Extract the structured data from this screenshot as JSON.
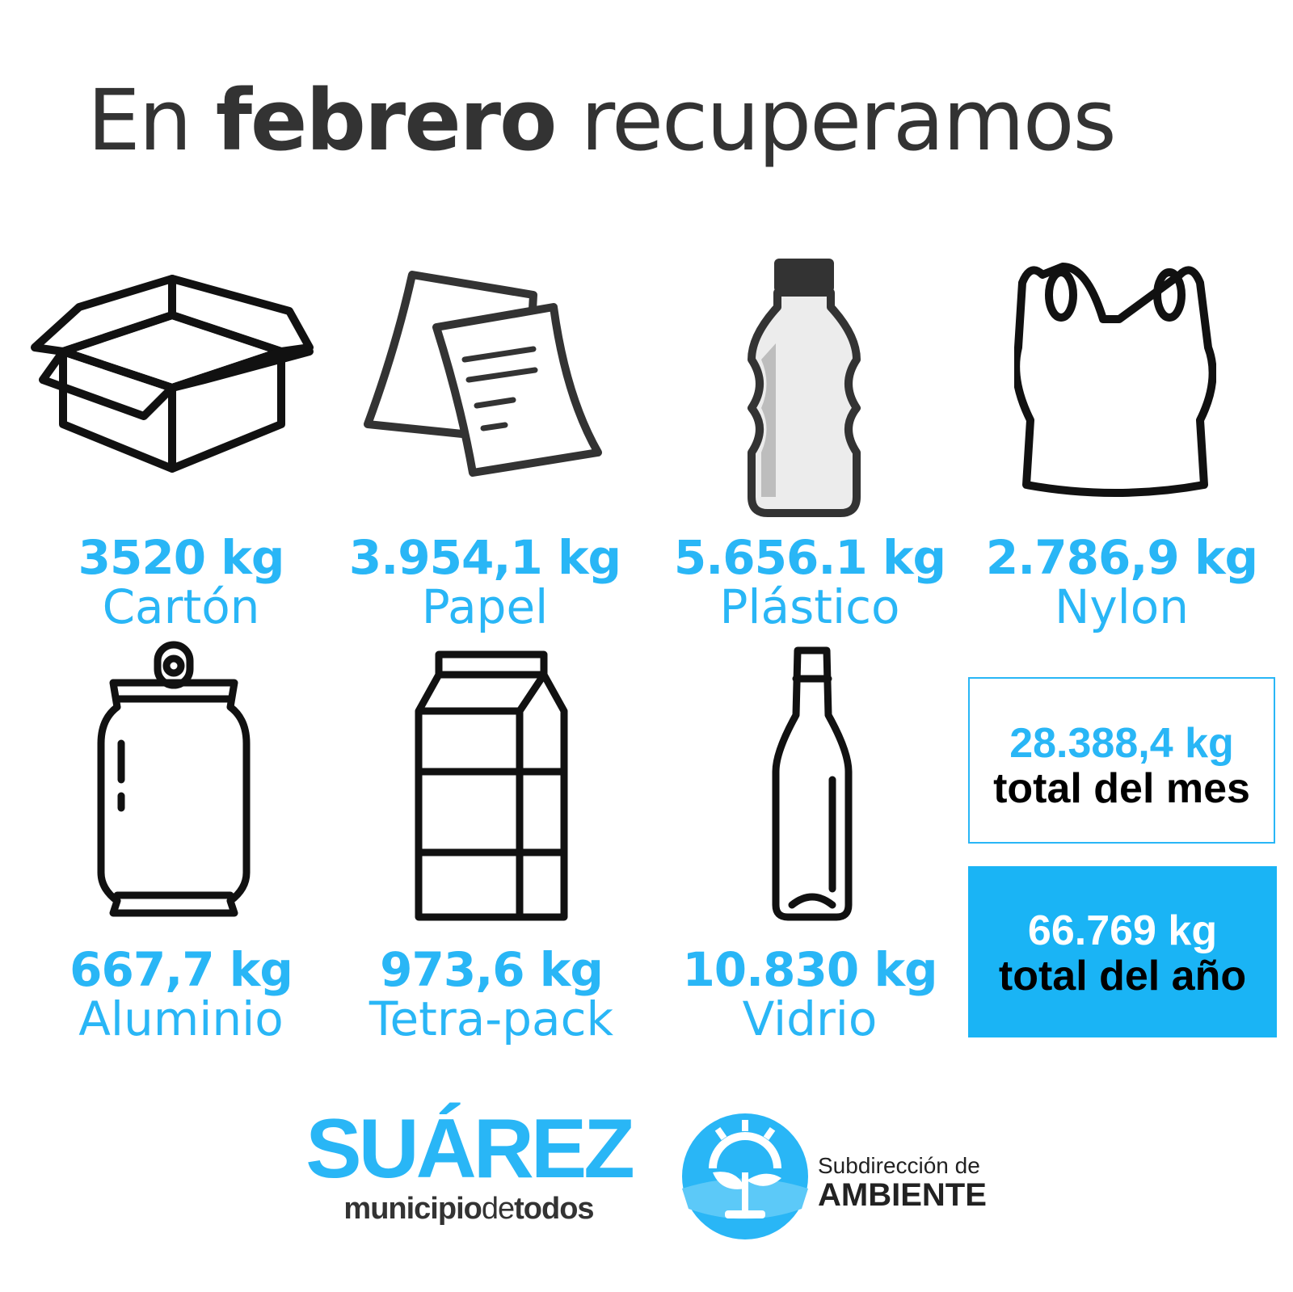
{
  "title": {
    "pre": "En ",
    "bold": "febrero",
    "post": " recuperamos"
  },
  "items": [
    {
      "kg": "3520 kg",
      "name": "Cartón",
      "icon": "box-icon"
    },
    {
      "kg": "3.954,1 kg",
      "name": "Papel",
      "icon": "paper-icon"
    },
    {
      "kg": "5.656.1 kg",
      "name": "Plástico",
      "icon": "plastic-bottle-icon"
    },
    {
      "kg": "2.786,9 kg",
      "name": "Nylon",
      "icon": "plastic-bag-icon"
    },
    {
      "kg": "667,7 kg",
      "name": "Aluminio",
      "icon": "can-icon"
    },
    {
      "kg": "973,6 kg",
      "name": "Tetra-pack",
      "icon": "carton-pack-icon"
    },
    {
      "kg": "10.830 kg",
      "name": "Vidrio",
      "icon": "glass-bottle-icon"
    }
  ],
  "totals": {
    "month": {
      "kg": "28.388,4 kg",
      "label": "total del mes"
    },
    "year": {
      "kg": "66.769 kg",
      "label": "total del año"
    }
  },
  "brand": {
    "name": "SUÁREZ",
    "tag_a": "municipio",
    "tag_b": "de",
    "tag_c": "todos"
  },
  "ambiente": {
    "sub": "Subdirección de",
    "name": "AMBIENTE"
  },
  "colors": {
    "accent": "#29b6f6",
    "dark": "#333333",
    "total_year_bg": "#1ab4f5"
  }
}
